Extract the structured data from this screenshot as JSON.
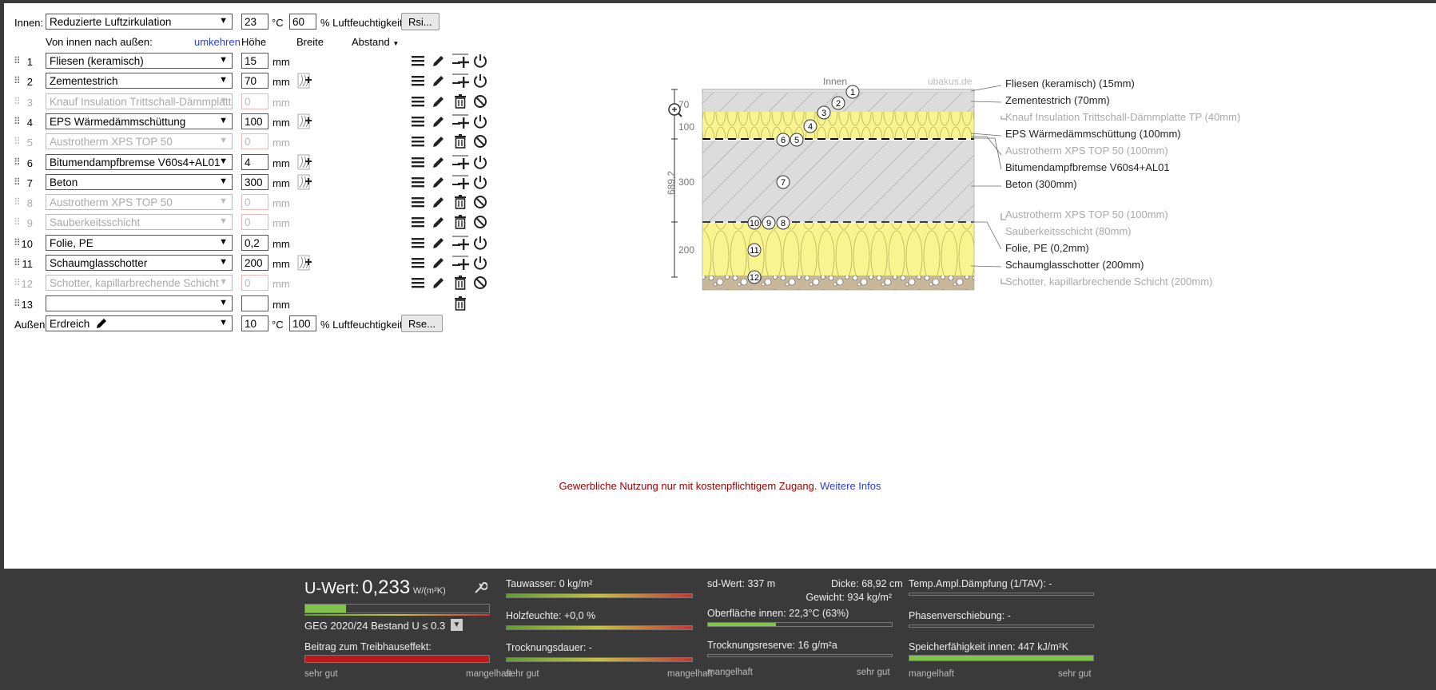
{
  "inside": {
    "label": "Innen:",
    "climate": "Reduzierte Luftzirkulation",
    "temp": "23",
    "temp_unit": "°C",
    "humidity": "60",
    "humidity_unit": "% Luftfeuchtigkeit",
    "rsi_button": "Rsi..."
  },
  "columns": {
    "direction": "Von innen nach außen:",
    "reverse": "umkehren",
    "height": "Höhe",
    "width": "Breite",
    "distance": "Abstand"
  },
  "layers": [
    {
      "n": "1",
      "name": "Fliesen (keramisch)",
      "h": "15",
      "active": true,
      "spacer": false
    },
    {
      "n": "2",
      "name": "Zementestrich",
      "h": "70",
      "active": true,
      "spacer": true
    },
    {
      "n": "3",
      "name": "Knauf Insulation Trittschall-Dämmplatte TP",
      "h": "0",
      "active": false,
      "spacer": false
    },
    {
      "n": "4",
      "name": "EPS Wärmedämmschüttung",
      "h": "100",
      "active": true,
      "spacer": true
    },
    {
      "n": "5",
      "name": "Austrotherm XPS TOP 50",
      "h": "0",
      "active": false,
      "spacer": false
    },
    {
      "n": "6",
      "name": "Bitumendampfbremse V60s4+AL01",
      "h": "4",
      "active": true,
      "spacer": true
    },
    {
      "n": "7",
      "name": "Beton",
      "h": "300",
      "active": true,
      "spacer": true
    },
    {
      "n": "8",
      "name": "Austrotherm XPS TOP 50",
      "h": "0",
      "active": false,
      "spacer": false
    },
    {
      "n": "9",
      "name": "Sauberkeitsschicht",
      "h": "0",
      "active": false,
      "spacer": false
    },
    {
      "n": "10",
      "name": "Folie, PE",
      "h": "0,2",
      "active": true,
      "spacer": false
    },
    {
      "n": "11",
      "name": "Schaumglasschotter",
      "h": "200",
      "active": true,
      "spacer": true
    },
    {
      "n": "12",
      "name": "Schotter, kapillarbrechende Schicht",
      "h": "0",
      "active": false,
      "spacer": false
    },
    {
      "n": "13",
      "name": "",
      "h": "",
      "active": true,
      "spacer": false,
      "empty": true
    }
  ],
  "mm": "mm",
  "outside": {
    "label": "Außen:",
    "climate": "Erdreich",
    "temp": "10",
    "temp_unit": "°C",
    "humidity": "100",
    "humidity_unit": "% Luftfeuchtigkeit",
    "rse_button": "Rse..."
  },
  "diagram": {
    "inside_label": "Innen",
    "watermark": "ubakus.de",
    "total": "689,2",
    "dims": [
      "70",
      "100",
      "300",
      "200"
    ],
    "legend": [
      {
        "text": "Fliesen (keramisch) (15mm)",
        "active": true
      },
      {
        "text": "Zementestrich (70mm)",
        "active": true
      },
      {
        "text": "Knauf Insulation Trittschall-Dämmplatte TP (40mm)",
        "active": false
      },
      {
        "text": "EPS Wärmedämmschüttung (100mm)",
        "active": true
      },
      {
        "text": "Austrotherm XPS TOP 50 (100mm)",
        "active": false
      },
      {
        "text": "Bitumendampfbremse V60s4+AL01",
        "active": true
      },
      {
        "text": "Beton (300mm)",
        "active": true
      },
      {
        "text": "Austrotherm XPS TOP 50 (100mm)",
        "active": false
      },
      {
        "text": "Sauberkeitsschicht (80mm)",
        "active": false
      },
      {
        "text": "Folie, PE (0,2mm)",
        "active": true
      },
      {
        "text": "Schaumglasschotter (200mm)",
        "active": true
      },
      {
        "text": "Schotter, kapillarbrechende Schicht (200mm)",
        "active": false
      }
    ]
  },
  "notice": {
    "text": "Gewerbliche Nutzung nur mit kostenpflichtigem Zugang.",
    "link": "Weitere Infos"
  },
  "footer": {
    "uwert_label": "U-Wert:",
    "uwert_value": "0,233",
    "uwert_unit": "W/(m²K)",
    "uwert_fill": 0.22,
    "geg": "GEG 2020/24 Bestand U ≤ 0.3",
    "treibhaus": "Beitrag zum Treibhauseffekt:",
    "sehr_gut": "sehr gut",
    "mangelhaft": "mangelhaft",
    "tauwasser": "Tauwasser: 0 kg/m²",
    "holzfeuchte": "Holzfeuchte: +0,0 %",
    "trocknungsdauer": "Trocknungsdauer: -",
    "sd_wert": "sd-Wert: 337 m",
    "dicke": "Dicke: 68,92 cm",
    "gewicht": "Gewicht: 934 kg/m²",
    "oberflaeche": "Oberfläche innen: 22,3°C (63%)",
    "oberflaeche_fill": 0.37,
    "trocknungsreserve": "Trocknungsreserve: 16 g/m²a",
    "temp_ampl": "Temp.Ampl.Dämpfung (1/TAV): -",
    "phasen": "Phasenverschiebung: -",
    "speicher": "Speicherfähigkeit innen: 447 kJ/m²K",
    "speicher_fill": 1.0
  }
}
